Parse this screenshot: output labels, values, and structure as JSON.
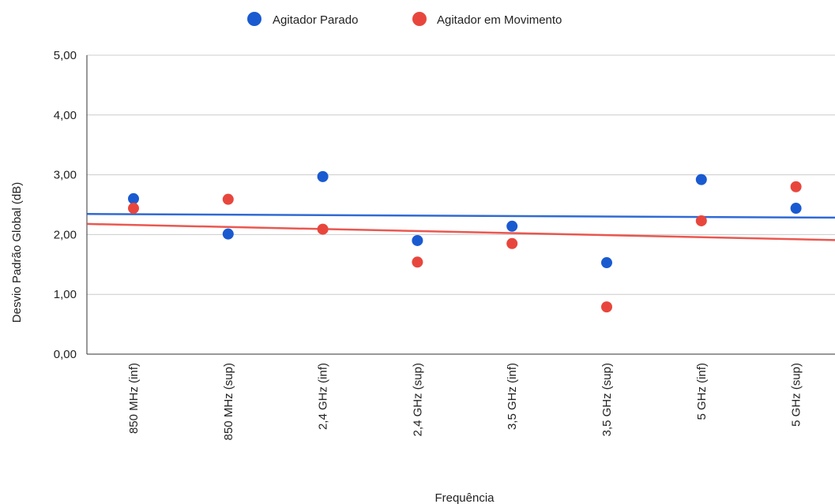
{
  "chart_data": {
    "type": "scatter",
    "title": "",
    "xlabel": "Frequência",
    "ylabel": "Desvio Padrão Global (dB)",
    "ylim": [
      0,
      5
    ],
    "yticks": [
      "0,00",
      "1,00",
      "2,00",
      "3,00",
      "4,00",
      "5,00"
    ],
    "categories": [
      "850 MHz (inf)",
      "850 MHz (sup)",
      "2,4 GHz (inf)",
      "2,4 GHz (sup)",
      "3,5 GHz (inf)",
      "3,5 GHz (sup)",
      "5 GHz (inf)",
      "5 GHz (sup)"
    ],
    "series": [
      {
        "name": "Agitador Parado",
        "color": "#1a5ad0",
        "values": [
          2.6,
          2.01,
          2.97,
          1.9,
          2.14,
          1.53,
          2.92,
          2.44
        ],
        "trendline": true
      },
      {
        "name": "Agitador em Movimento",
        "color": "#e8463d",
        "values": [
          2.44,
          2.59,
          2.09,
          1.54,
          1.85,
          0.79,
          2.23,
          2.8
        ],
        "trendline": true
      }
    ],
    "grid": true,
    "legend": "top-center"
  }
}
